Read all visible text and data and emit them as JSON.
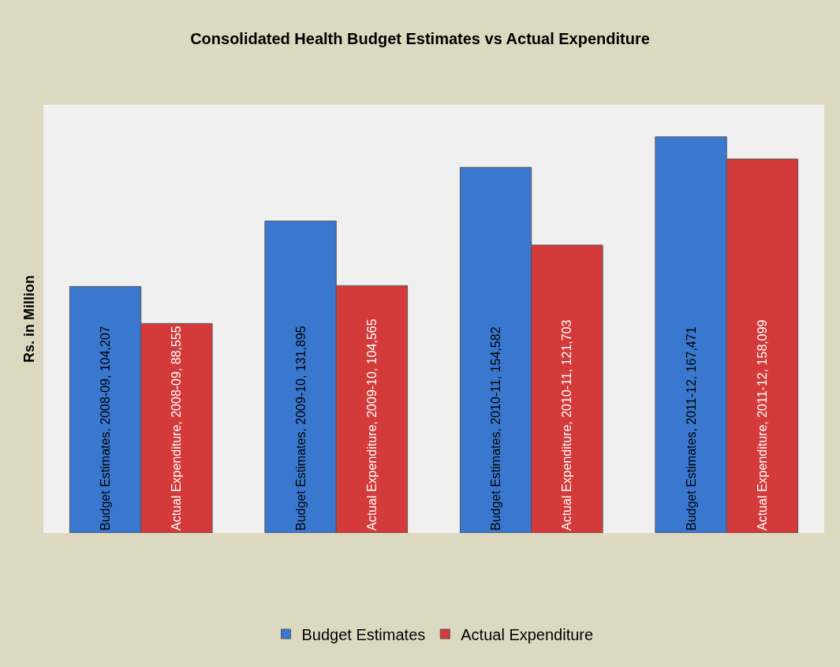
{
  "chart_data": {
    "type": "bar",
    "title": "Consolidated Health Budget Estimates vs Actual Expenditure",
    "ylabel": "Rs. in Million",
    "categories": [
      null,
      null,
      null,
      null
    ],
    "ylim": [
      0,
      181000
    ],
    "legend": "bottom",
    "series": [
      {
        "name": "Budget Estimates",
        "color": "#3a78d0",
        "values": [
          104207,
          131895,
          154582,
          167471
        ],
        "value_labels": [
          "Budget Estimates, 2008-09, 104,207",
          "Budget Estimates, 2009-10, 131,895",
          "Budget Estimates, 2010-11, 154,582",
          "Budget Estimates, 2011-12, 167,471"
        ]
      },
      {
        "name": "Actual Expenditure",
        "color": "#d43a3a",
        "values": [
          88555,
          104565,
          121703,
          158099
        ],
        "value_labels": [
          "Actual Expenditure, 2008-09, 88,555",
          "Actual Expenditure, 2009-10, 104,565",
          "Actual Expenditure, 2010-11, 121,703",
          "Actual Expenditure, 2011-12, 158,099"
        ]
      }
    ]
  }
}
